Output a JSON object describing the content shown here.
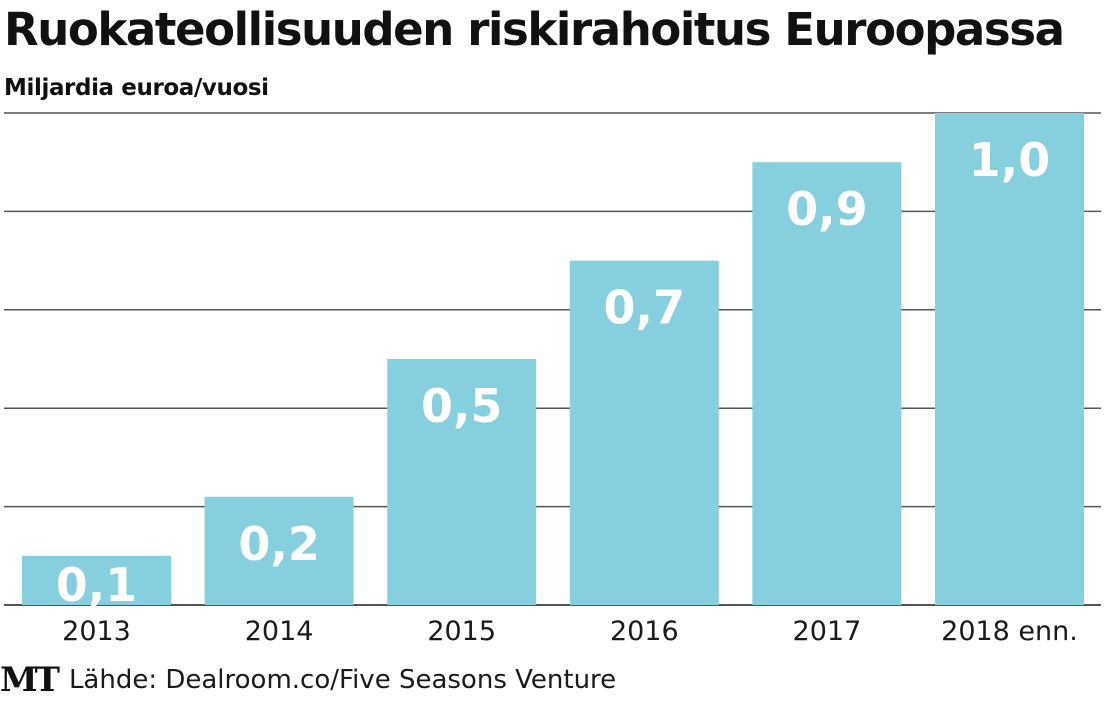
{
  "chart_data": {
    "type": "bar",
    "title": "Ruokateollisuuden riskirahoitus Euroopassa",
    "subtitle": "Miljardia euroa/vuosi",
    "categories": [
      "2013",
      "2014",
      "2015",
      "2016",
      "2017",
      "2018 enn."
    ],
    "values": [
      0.1,
      0.22,
      0.5,
      0.7,
      0.9,
      1.0
    ],
    "data_labels": [
      "0,1",
      "0,2",
      "0,5",
      "0,7",
      "0,9",
      "1,0"
    ],
    "ylim": [
      0,
      1.0
    ],
    "y_gridlines": [
      0,
      0.2,
      0.4,
      0.6,
      0.8,
      1.0
    ],
    "grid": true,
    "legend": "none",
    "bar_color": "#85cfde",
    "label_color": "#ffffff",
    "gridline_color": "#555555"
  },
  "footer": {
    "logo": "MT",
    "source": "Lähde: Dealroom.co/Five Seasons Venture"
  }
}
